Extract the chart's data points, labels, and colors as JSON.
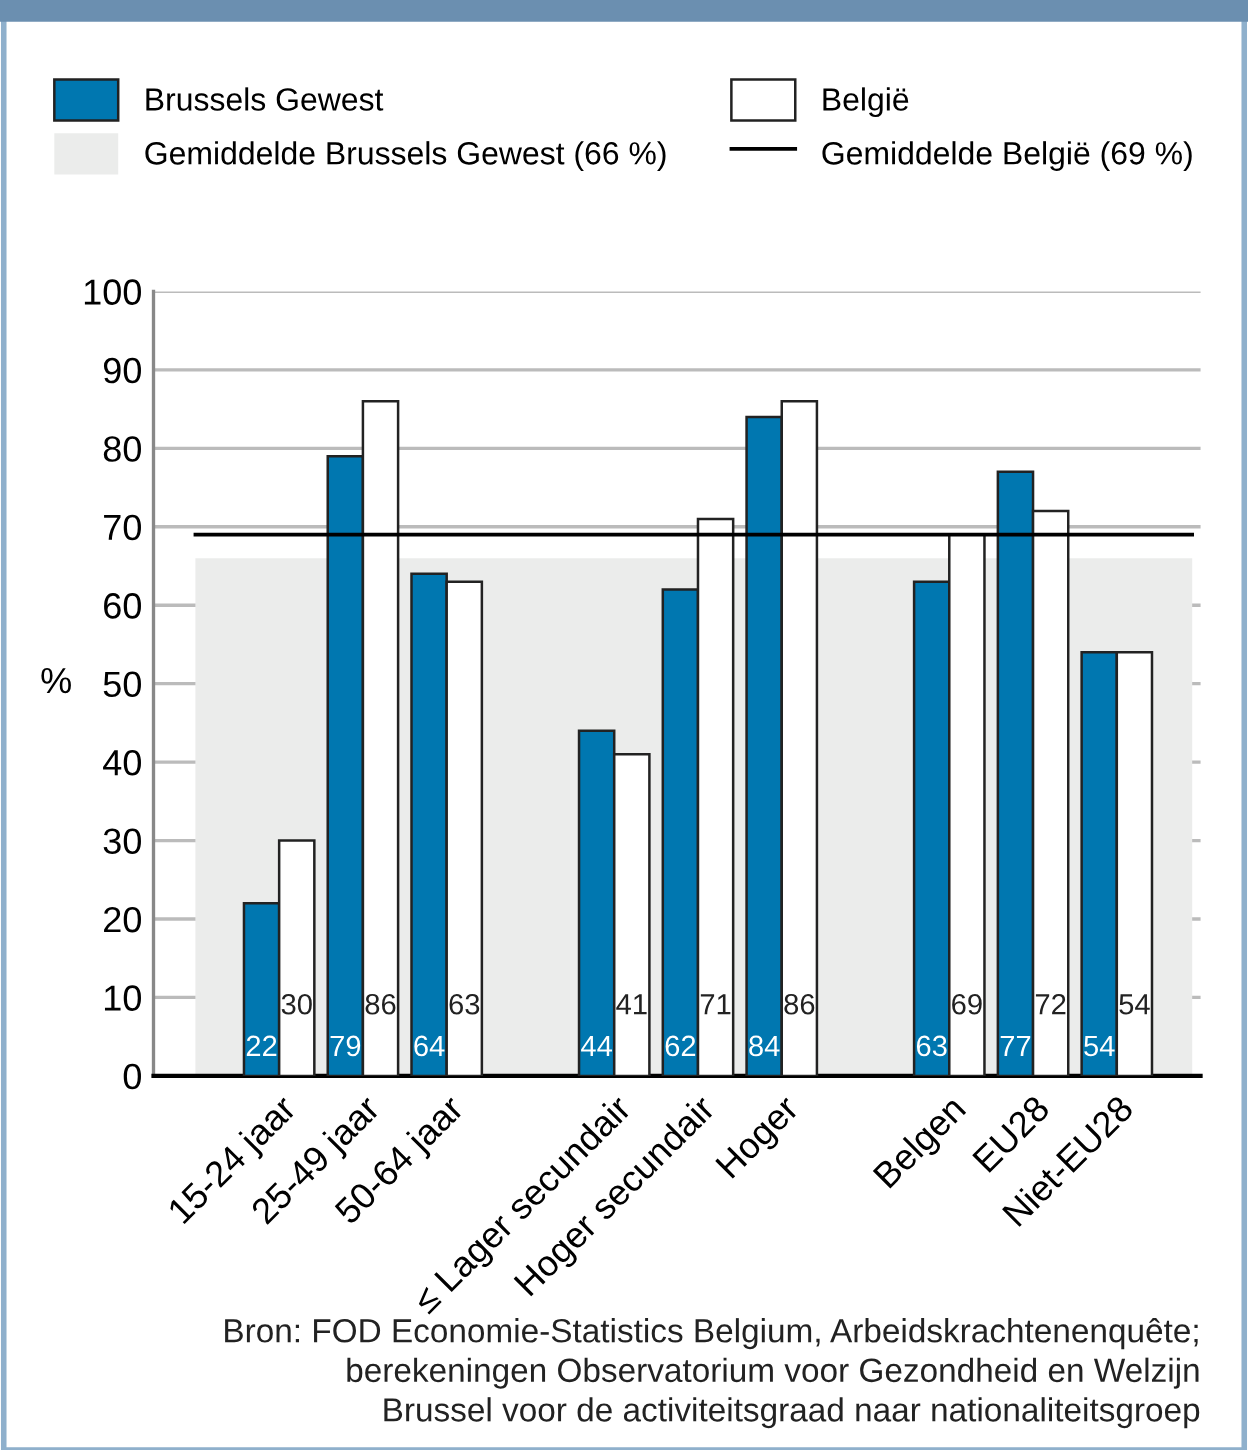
{
  "chart_data": {
    "type": "bar",
    "categories": [
      "15-24 jaar",
      "25-49 jaar",
      "50-64 jaar",
      null,
      "≤ Lager secundair",
      "Hoger secundair",
      "Hoger",
      null,
      "Belgen",
      "EU28",
      "Niet-EU28"
    ],
    "series": [
      {
        "name": "Brussels Gewest",
        "color": "#0077b0",
        "values": [
          22,
          79,
          64,
          null,
          44,
          62,
          84,
          null,
          63,
          77,
          54
        ]
      },
      {
        "name": "België",
        "color": "#ffffff",
        "values": [
          30,
          86,
          63,
          null,
          41,
          71,
          86,
          null,
          69,
          72,
          54
        ]
      }
    ],
    "ylabel": "%",
    "ylim": [
      0,
      100
    ],
    "yticks": [
      0,
      10,
      20,
      30,
      40,
      50,
      60,
      70,
      80,
      90,
      100
    ],
    "grid": "y",
    "legend": "top",
    "data_labels": true,
    "bands": [
      {
        "axis": "y",
        "from": 0,
        "to": 66,
        "label": "Gemiddelde Brussels Gewest (66 %)",
        "color": "#ebeceb"
      }
    ],
    "ref_lines": [
      {
        "axis": "y",
        "value": 69,
        "label": "Gemiddelde België (69 %)",
        "color": "#000000",
        "line_style": "solid"
      }
    ],
    "annotations": [
      "Bron: FOD Economie-Statistics Belgium, Arbeidskrachtenenquête;\nberekeningen Observatorium voor Gezondheid en Welzijn\nBrussel voor de activiteitsgraad naar nationaliteitsgroep"
    ]
  }
}
